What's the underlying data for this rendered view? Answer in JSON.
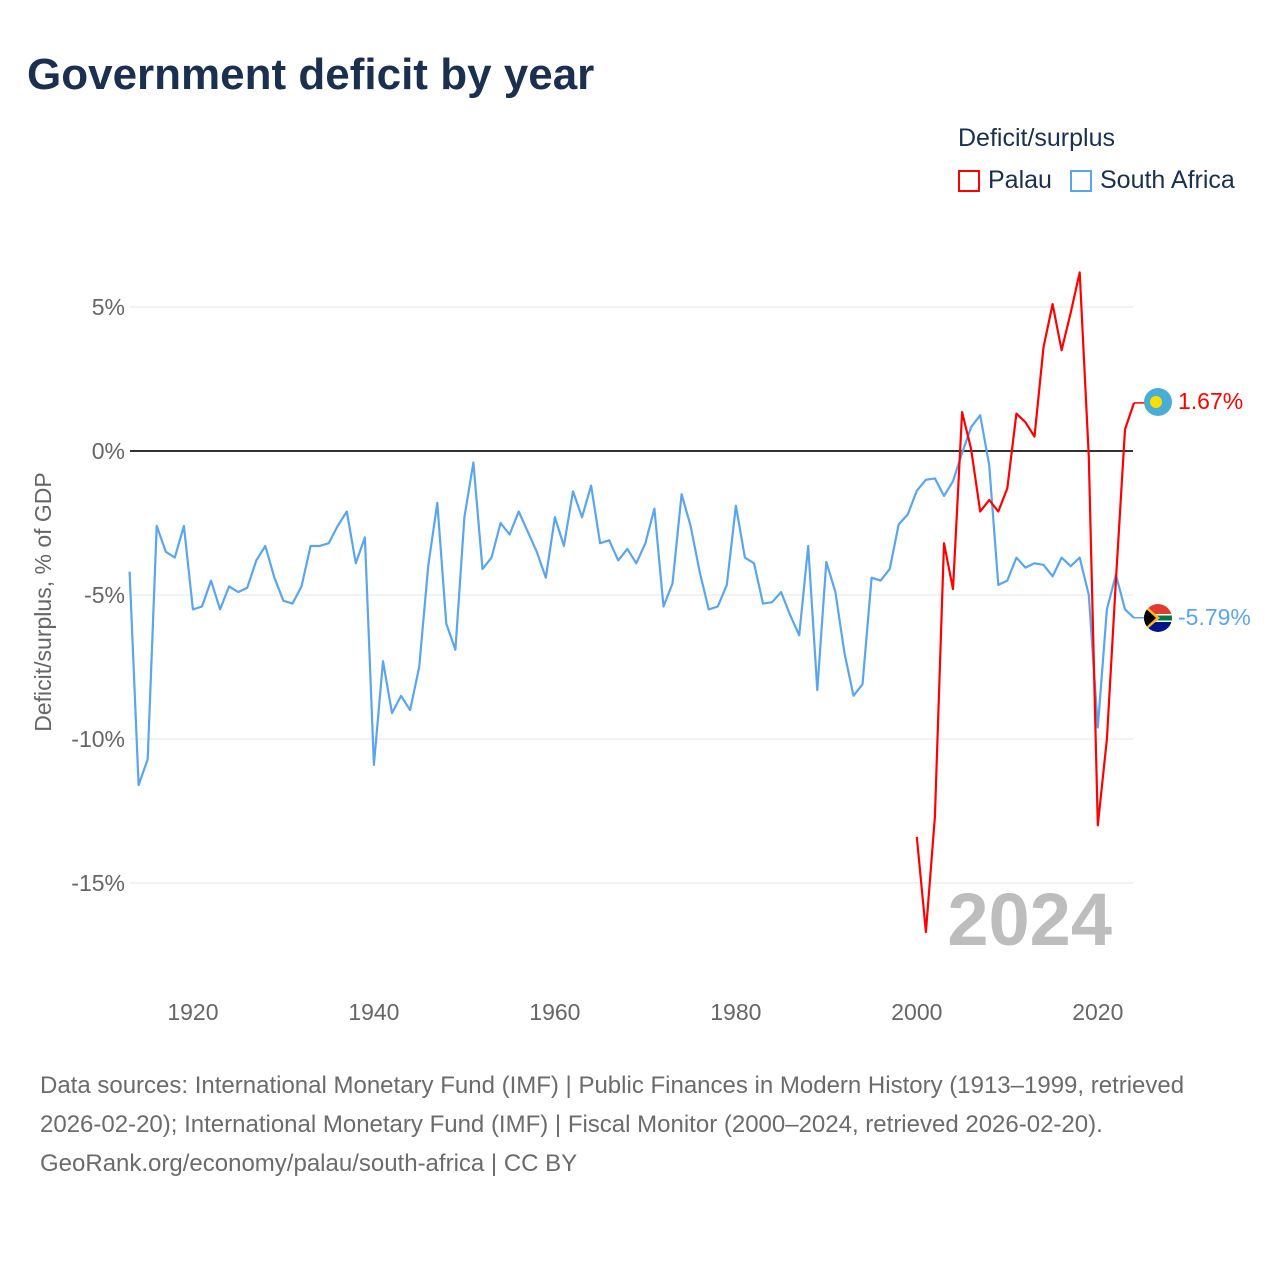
{
  "title": "Government deficit by year",
  "legend": {
    "title": "Deficit/surplus",
    "items": [
      {
        "label": "Palau",
        "color": "#ff0000"
      },
      {
        "label": "South Africa",
        "color": "#5aa5ec"
      }
    ]
  },
  "footer": {
    "sources": "Data sources: International Monetary Fund (IMF) | Public Finances in Modern History (1913–1999, retrieved 2026-02-20); International Monetary Fund (IMF) | Fiscal Monitor (2000–2024, retrieved 2026-02-20).",
    "link": "GeoRank.org/economy/palau/south-africa | CC BY"
  },
  "chart_data": {
    "type": "line",
    "title": "Government deficit by year",
    "xlabel": "",
    "ylabel": "Deficit/surplus, % of GDP",
    "xlim": [
      1913,
      2024
    ],
    "ylim": [
      -17.5,
      7
    ],
    "x_ticks": [
      1920,
      1940,
      1960,
      1980,
      2000,
      2020
    ],
    "y_ticks": [
      {
        "value": 5,
        "label": "5%"
      },
      {
        "value": 0,
        "label": "0%"
      },
      {
        "value": -5,
        "label": "-5%"
      },
      {
        "value": -10,
        "label": "-10%"
      },
      {
        "value": -15,
        "label": "-15%"
      }
    ],
    "grid": true,
    "year_watermark": "2024",
    "legend_position": "top-right",
    "series": [
      {
        "name": "Palau",
        "color": "#ff0000",
        "start_year": 2000,
        "values": [
          -13.4,
          -16.7,
          -12.7,
          -3.2,
          -4.8,
          1.35,
          0.07,
          -2.1,
          -1.7,
          -2.1,
          -1.3,
          1.3,
          1.0,
          0.5,
          3.6,
          5.1,
          3.5,
          4.8,
          6.2,
          -0.2,
          -13.0,
          -10.0,
          -4.5,
          0.75,
          1.67
        ],
        "end_label": "1.67%"
      },
      {
        "name": "South Africa",
        "color": "#5aa5ec",
        "start_year": 1913,
        "values": [
          -4.19,
          -11.6,
          -10.7,
          -2.6,
          -3.5,
          -3.7,
          -2.6,
          -5.5,
          -5.4,
          -4.5,
          -5.5,
          -4.7,
          -4.9,
          -4.75,
          -3.8,
          -3.3,
          -4.4,
          -5.2,
          -5.3,
          -4.7,
          -3.3,
          -3.3,
          -3.2,
          -2.6,
          -2.1,
          -3.9,
          -3.0,
          -10.9,
          -7.3,
          -9.1,
          -8.5,
          -9.0,
          -7.5,
          -4.0,
          -1.8,
          -6.0,
          -6.9,
          -2.3,
          -0.4,
          -4.1,
          -3.7,
          -2.5,
          -2.9,
          -2.1,
          -2.8,
          -3.5,
          -4.4,
          -2.3,
          -3.3,
          -1.4,
          -2.3,
          -1.2,
          -3.2,
          -3.1,
          -3.8,
          -3.4,
          -3.9,
          -3.2,
          -2.0,
          -5.4,
          -4.6,
          -1.5,
          -2.6,
          -4.2,
          -5.5,
          -5.4,
          -4.65,
          -1.9,
          -3.7,
          -3.9,
          -5.3,
          -5.25,
          -4.9,
          -5.7,
          -6.4,
          -3.3,
          -8.3,
          -3.85,
          -4.9,
          -7.0,
          -8.5,
          -8.1,
          -4.4,
          -4.5,
          -4.1,
          -2.55,
          -2.2,
          -1.38,
          -1.0,
          -0.95,
          -1.56,
          -1.05,
          -0.07,
          0.83,
          1.24,
          -0.49,
          -4.65,
          -4.5,
          -3.7,
          -4.05,
          -3.9,
          -3.95,
          -4.35,
          -3.7,
          -4.0,
          -3.7,
          -5.0,
          -9.6,
          -5.5,
          -4.3,
          -5.5,
          -5.79
        ],
        "end_label": "-5.79%"
      }
    ]
  }
}
